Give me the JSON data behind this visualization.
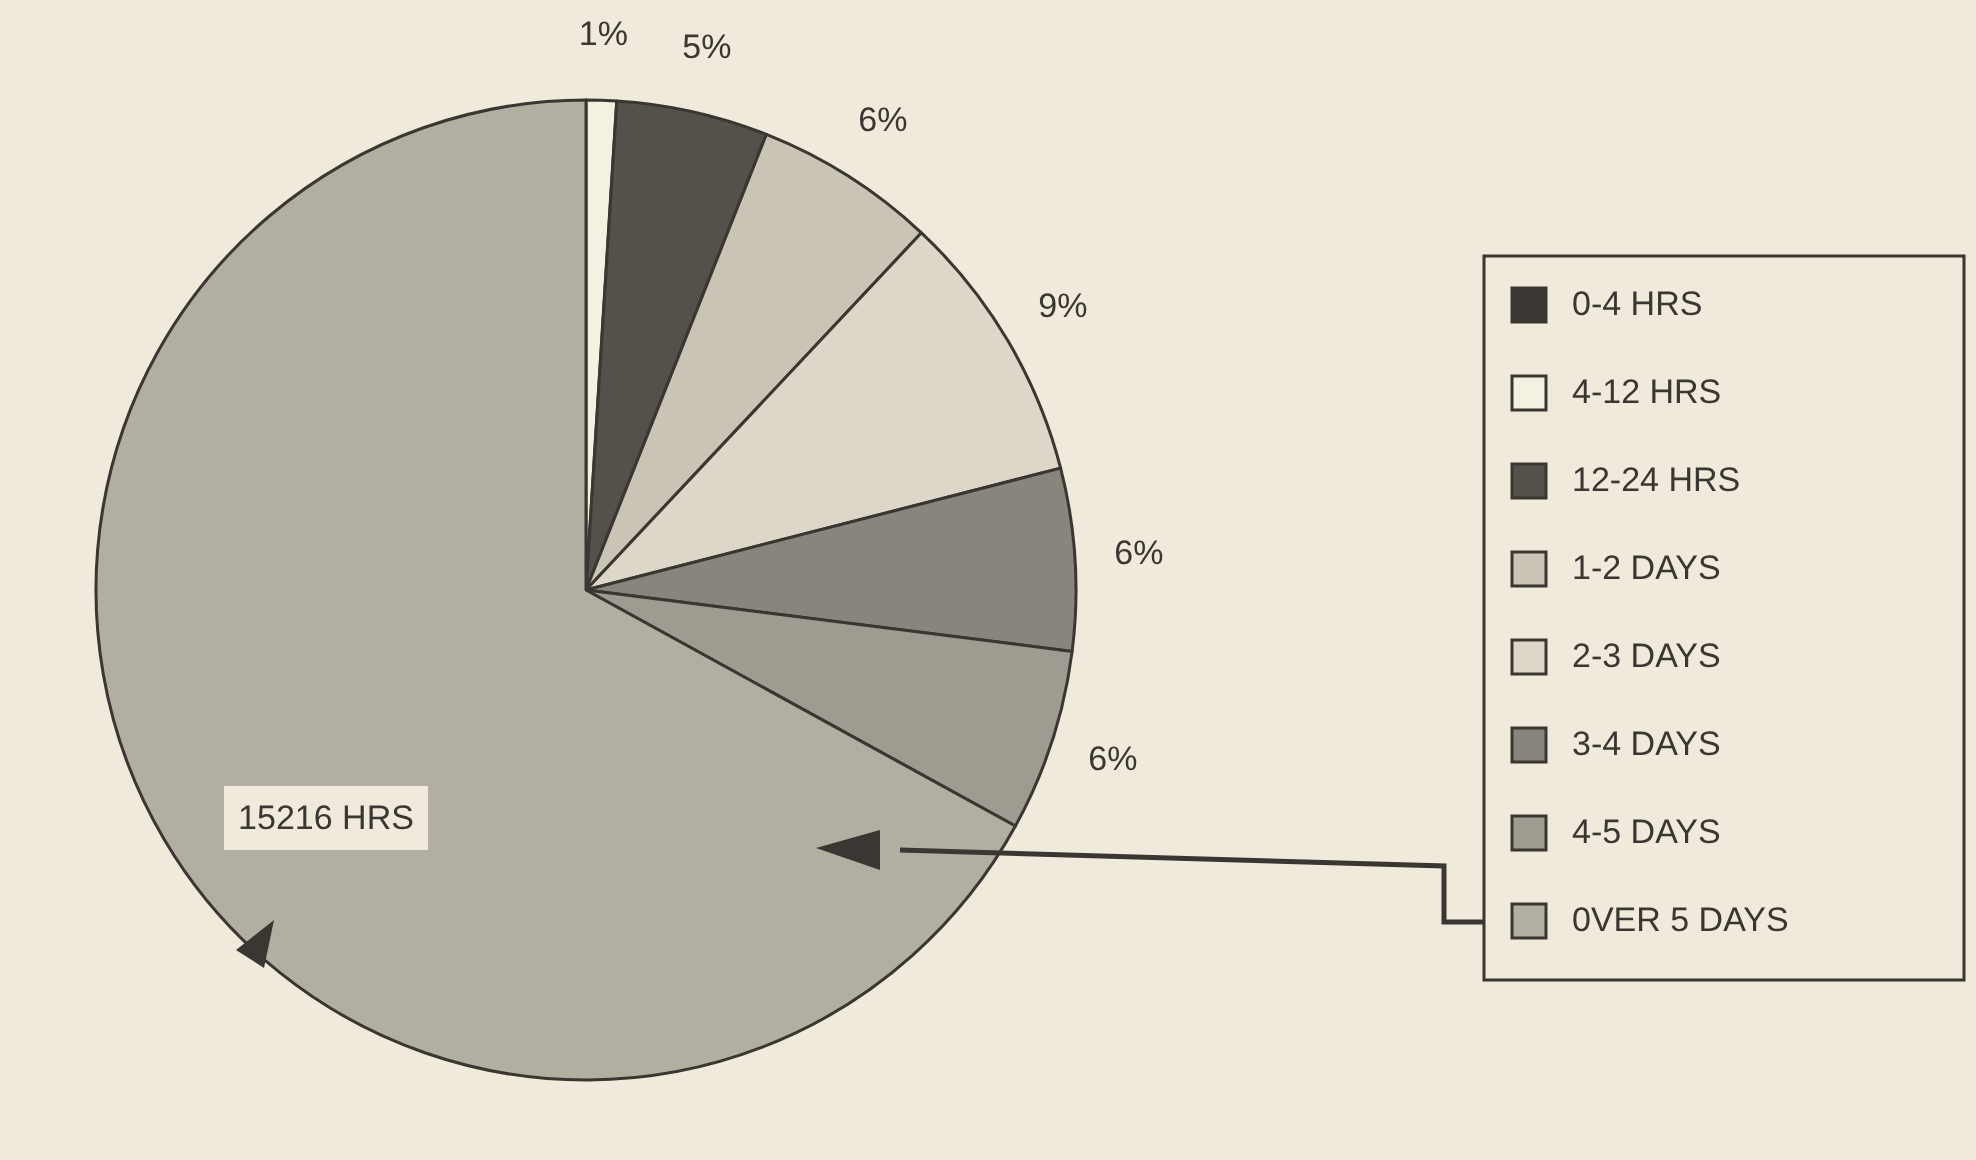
{
  "chart_data": {
    "type": "pie",
    "categories": [
      "0-4 HRS",
      "4-12 HRS",
      "12-24 HRS",
      "1-2 DAYS",
      "2-3 DAYS",
      "3-4 DAYS",
      "4-5 DAYS",
      "0VER 5 DAYS"
    ],
    "values": [
      0,
      1,
      5,
      6,
      9,
      6,
      6,
      67
    ],
    "colors": [
      "#3a3631",
      "#f4f0e2",
      "#55504a",
      "#c9c4b6",
      "#dcd7c8",
      "#8a857c",
      "#a09b91",
      "#b3aea2"
    ],
    "value_labels": [
      null,
      "1%",
      "5%",
      "6%",
      "9%",
      "6%",
      "6%",
      null
    ],
    "annotations": [
      "15216 HRS"
    ],
    "legend": "right"
  }
}
